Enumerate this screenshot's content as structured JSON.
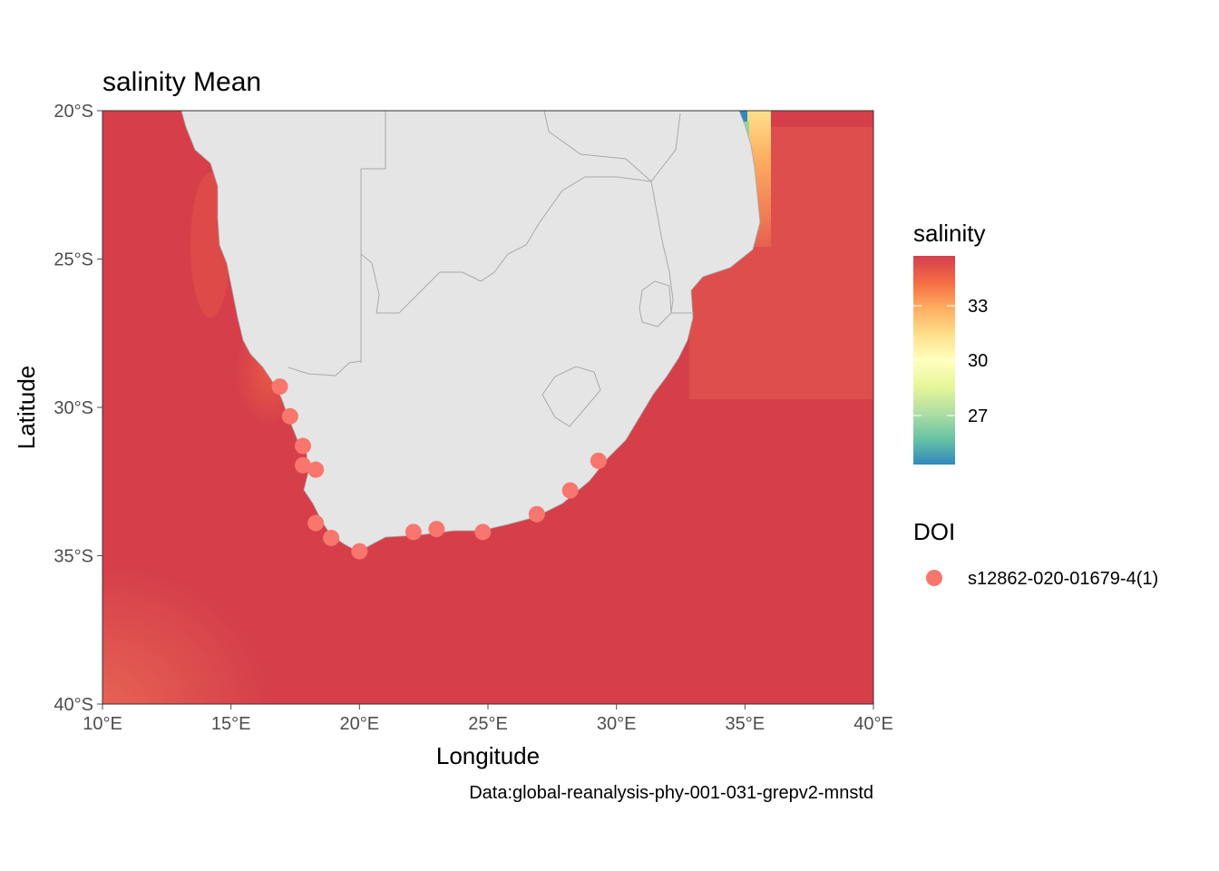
{
  "title": "salinity Mean",
  "xlabel": "Longitude",
  "ylabel": "Latitude",
  "caption": "Data:global-reanalysis-phy-001-031-grepv2-mnstd",
  "x_ticks": [
    "10°E",
    "15°E",
    "20°E",
    "25°E",
    "30°E",
    "35°E",
    "40°E"
  ],
  "y_ticks": [
    "20°S",
    "25°S",
    "30°S",
    "35°S",
    "40°S"
  ],
  "colors": {
    "ocean": "#d63f4a",
    "land": "#e5e5e5",
    "border": "#a9a9a9",
    "point": "#f8766d",
    "tick": "#4d4d4d"
  },
  "legend": {
    "salinity_title": "salinity",
    "salinity_labels": [
      "33",
      "30",
      "27"
    ],
    "doi_title": "DOI",
    "doi_entry": "s12862-020-01679-4(1)"
  },
  "chart_data": {
    "type": "scatter",
    "title": "salinity Mean",
    "xlabel": "Longitude",
    "ylabel": "Latitude",
    "xlim": [
      10,
      40
    ],
    "ylim": [
      -40,
      -20
    ],
    "colorbar": {
      "variable": "salinity",
      "ticks": [
        33,
        30,
        27
      ],
      "range": [
        25.5,
        35.3
      ],
      "palette": [
        "#3288bd",
        "#99d594",
        "#e6f598",
        "#ffffbf",
        "#fee08b",
        "#fc8d59",
        "#d53e4f"
      ]
    },
    "series": [
      {
        "name": "s12862-020-01679-4(1)",
        "points": [
          {
            "lon": 16.9,
            "lat": -29.3
          },
          {
            "lon": 17.3,
            "lat": -30.3
          },
          {
            "lon": 17.8,
            "lat": -31.3
          },
          {
            "lon": 17.8,
            "lat": -31.95
          },
          {
            "lon": 18.3,
            "lat": -32.1
          },
          {
            "lon": 18.3,
            "lat": -33.9
          },
          {
            "lon": 18.9,
            "lat": -34.4
          },
          {
            "lon": 20.0,
            "lat": -34.85
          },
          {
            "lon": 22.1,
            "lat": -34.2
          },
          {
            "lon": 23.0,
            "lat": -34.1
          },
          {
            "lon": 24.8,
            "lat": -34.2
          },
          {
            "lon": 26.9,
            "lat": -33.6
          },
          {
            "lon": 28.2,
            "lat": -32.8
          },
          {
            "lon": 29.3,
            "lat": -31.8
          }
        ]
      }
    ]
  }
}
